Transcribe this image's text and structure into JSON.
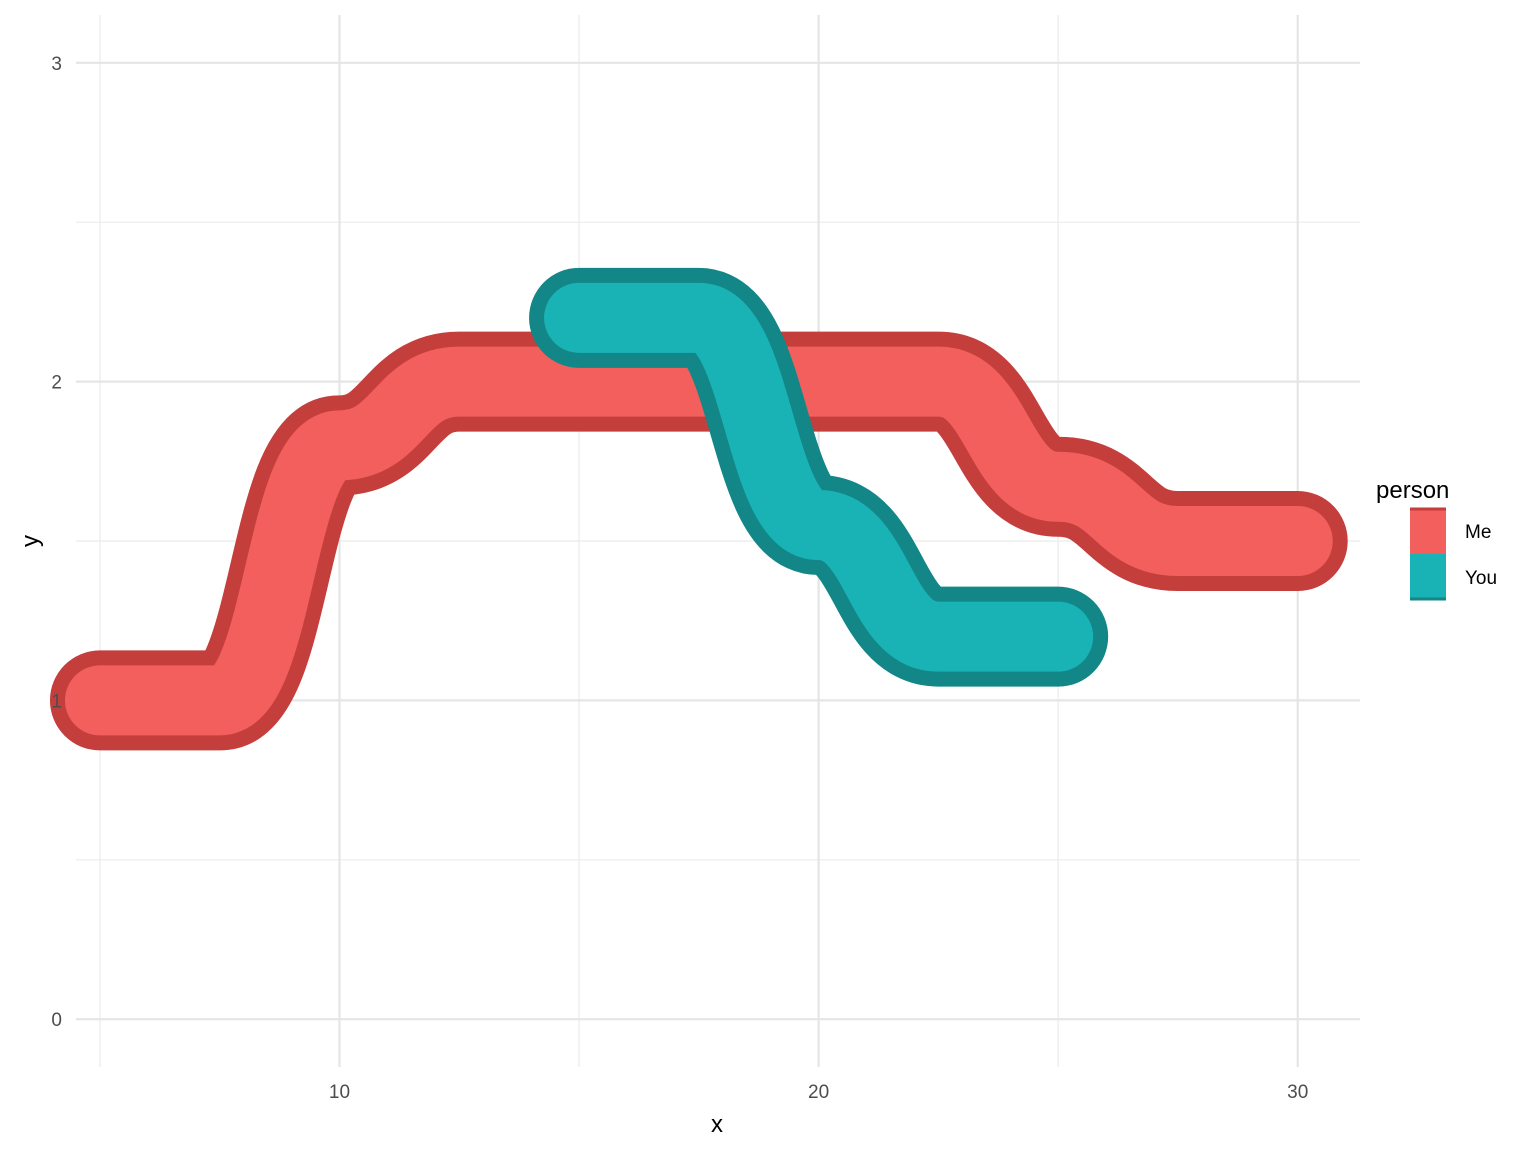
{
  "chart_data": {
    "type": "line",
    "xlabel": "x",
    "ylabel": "y",
    "xlim": [
      4.5,
      31.3
    ],
    "ylim": [
      -0.15,
      3.15
    ],
    "x_ticks": [
      10,
      20,
      30
    ],
    "y_ticks": [
      0,
      1,
      2,
      3
    ],
    "grid": true,
    "legend": {
      "title": "person",
      "position": "right"
    },
    "series": [
      {
        "name": "Me",
        "fill": "#F25F5C",
        "outline": "#C43E3B",
        "points": [
          [
            5,
            1
          ],
          [
            7.5,
            1
          ],
          [
            10,
            1.8
          ],
          [
            12.5,
            2
          ],
          [
            22.5,
            2
          ],
          [
            25,
            1.67
          ],
          [
            27.5,
            1.5
          ],
          [
            30,
            1.5
          ]
        ]
      },
      {
        "name": "You",
        "fill": "#19B3B6",
        "outline": "#138687",
        "points": [
          [
            15,
            2.2
          ],
          [
            17.5,
            2.2
          ],
          [
            20,
            1.55
          ],
          [
            22.5,
            1.2
          ],
          [
            25,
            1.2
          ]
        ]
      }
    ]
  }
}
